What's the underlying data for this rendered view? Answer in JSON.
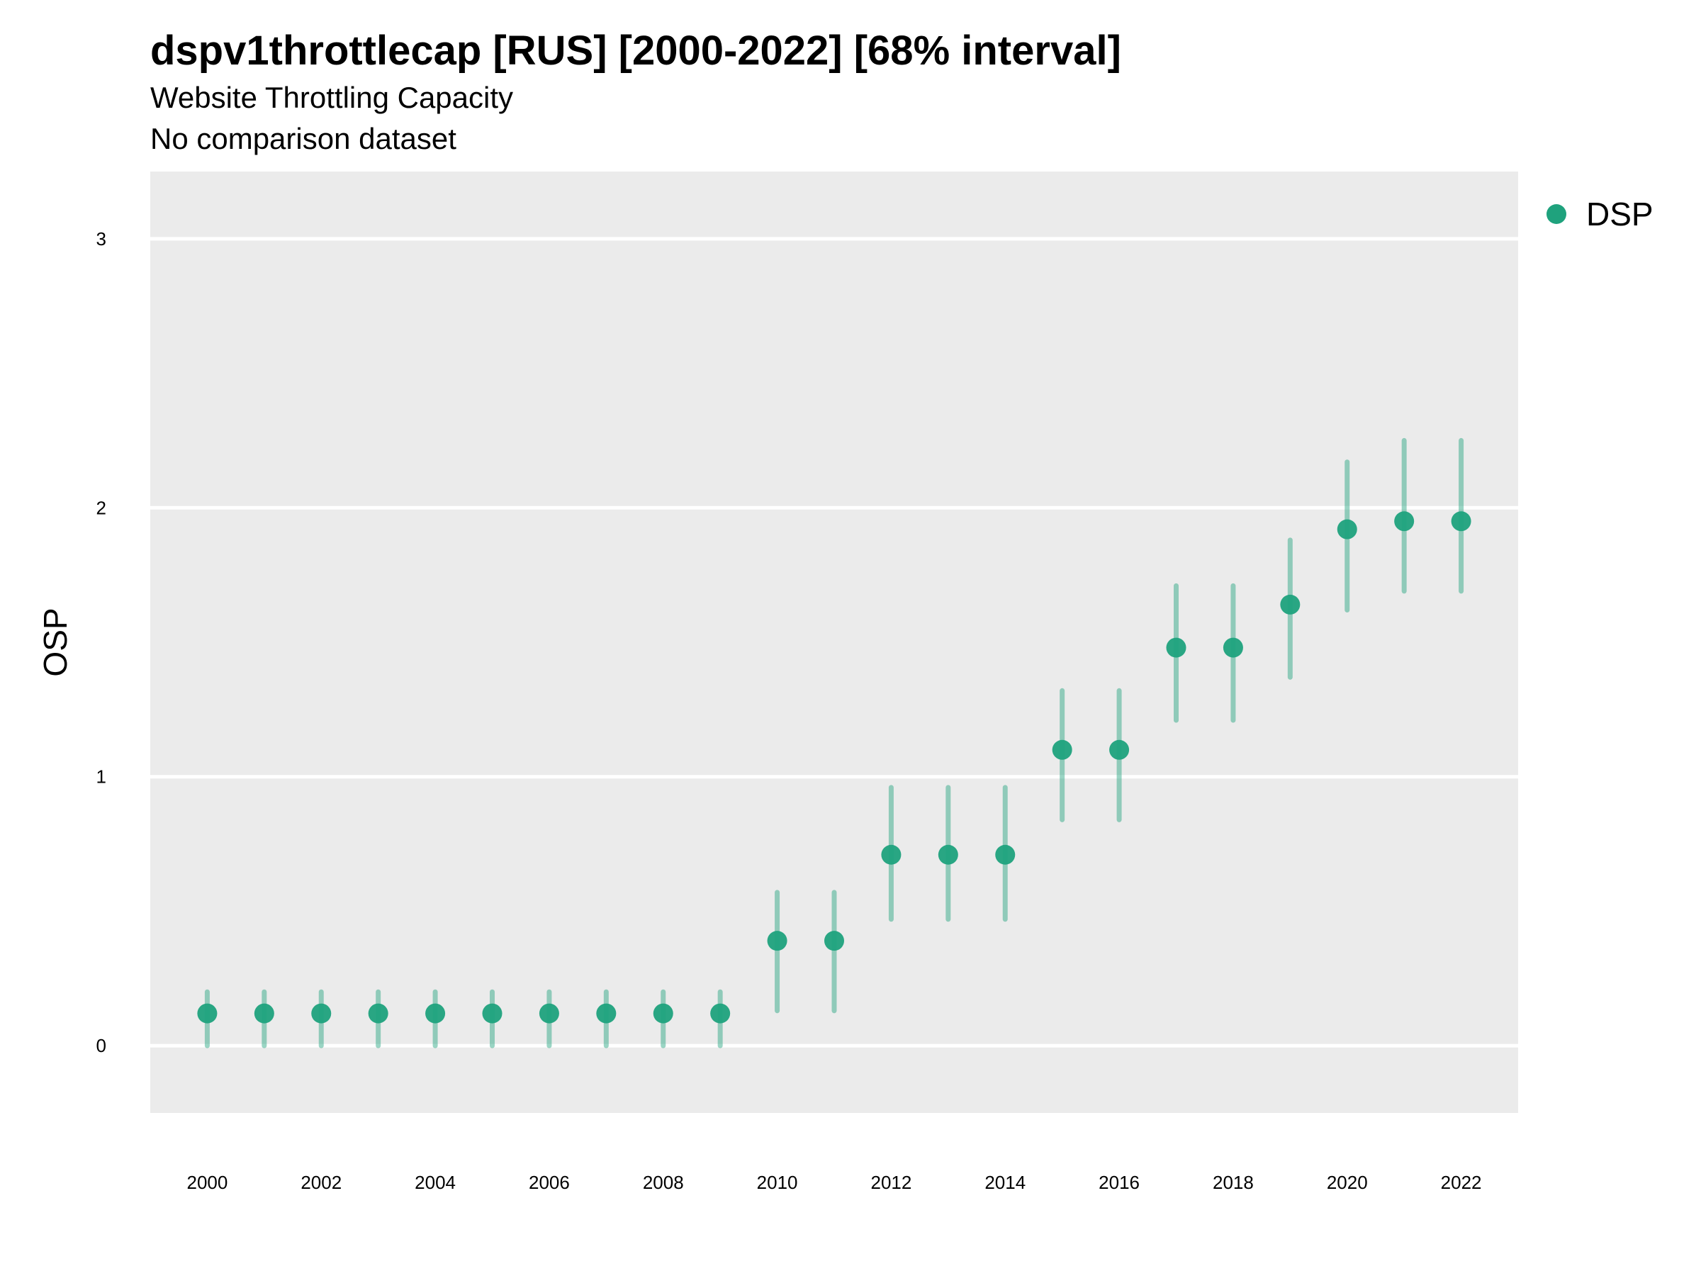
{
  "chart_data": {
    "type": "scatter",
    "title": "dspv1throttlecap [RUS] [2000-2022] [68% interval]",
    "subtitle": "Website Throttling Capacity",
    "subtitle2": "No comparison dataset",
    "xlabel": "",
    "ylabel": "OSP",
    "xlim": [
      1999,
      2023
    ],
    "ylim": [
      -0.25,
      3.25
    ],
    "x_ticks": [
      2000,
      2002,
      2004,
      2006,
      2008,
      2010,
      2012,
      2014,
      2016,
      2018,
      2020,
      2022
    ],
    "y_ticks": [
      0,
      1,
      2,
      3
    ],
    "grid": true,
    "legend_position": "top-right",
    "series": [
      {
        "name": "DSP",
        "color": "#1fa27d",
        "x": [
          2000,
          2001,
          2002,
          2003,
          2004,
          2005,
          2006,
          2007,
          2008,
          2009,
          2010,
          2011,
          2012,
          2013,
          2014,
          2015,
          2016,
          2017,
          2018,
          2019,
          2020,
          2021,
          2022
        ],
        "y": [
          0.12,
          0.12,
          0.12,
          0.12,
          0.12,
          0.12,
          0.12,
          0.12,
          0.12,
          0.12,
          0.39,
          0.39,
          0.71,
          0.71,
          0.71,
          1.1,
          1.1,
          1.48,
          1.48,
          1.64,
          1.92,
          1.95,
          1.95
        ],
        "lower": [
          0.0,
          0.0,
          0.0,
          0.0,
          0.0,
          0.0,
          0.0,
          0.0,
          0.0,
          0.0,
          0.13,
          0.13,
          0.47,
          0.47,
          0.47,
          0.84,
          0.84,
          1.21,
          1.21,
          1.37,
          1.62,
          1.69,
          1.69
        ],
        "upper": [
          0.2,
          0.2,
          0.2,
          0.2,
          0.2,
          0.2,
          0.2,
          0.2,
          0.2,
          0.2,
          0.57,
          0.57,
          0.96,
          0.96,
          0.96,
          1.32,
          1.32,
          1.71,
          1.71,
          1.88,
          2.17,
          2.25,
          2.25
        ]
      }
    ]
  }
}
